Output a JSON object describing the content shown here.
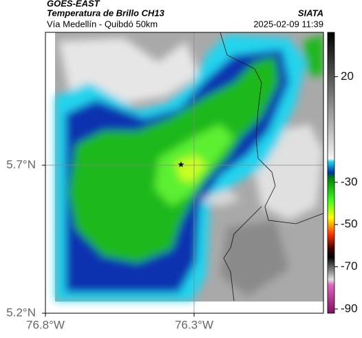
{
  "header": {
    "source": "GOES-EAST",
    "title": "Temperatura de Brillo CH13",
    "subtitle": "Vía Medellín - Quibdó 50km",
    "brand": "SIATA",
    "timestamp": "2025-02-09 11:39"
  },
  "map": {
    "xlim": [
      -76.8,
      -75.865
    ],
    "ylim": [
      5.2,
      6.149
    ],
    "xticks": [
      {
        "value": -76.8,
        "label": "76.8°W"
      },
      {
        "value": -76.3,
        "label": "76.3°W"
      }
    ],
    "yticks": [
      {
        "value": 5.2,
        "label": "5.2°N"
      },
      {
        "value": 5.7,
        "label": "5.7°N"
      }
    ]
  },
  "colorbar": {
    "lim": [
      -92,
      41
    ],
    "ticks": [
      20,
      -30,
      -50,
      -70,
      -90
    ]
  }
}
